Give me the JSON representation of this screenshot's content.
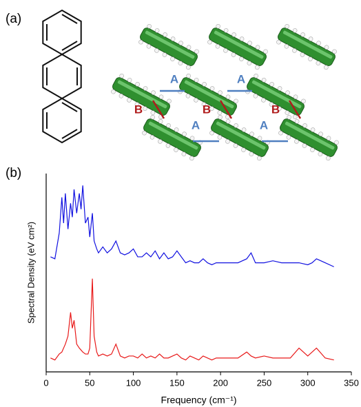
{
  "panel_labels": [
    "(a)",
    "(b)"
  ],
  "diagram": {
    "labels": [
      {
        "text": "A",
        "color": "#4f7fc0"
      },
      {
        "text": "A",
        "color": "#4f7fc0"
      },
      {
        "text": "A",
        "color": "#4f7fc0"
      },
      {
        "text": "A",
        "color": "#4f7fc0"
      },
      {
        "text": "B",
        "color": "#b01c1c"
      },
      {
        "text": "B",
        "color": "#b01c1c"
      },
      {
        "text": "B",
        "color": "#b01c1c"
      }
    ]
  },
  "chart_data": {
    "type": "line",
    "xlabel": "Frequency (cm⁻¹)",
    "ylabel": "Spectral Density (eV cm²)",
    "xlim": [
      0,
      350
    ],
    "xticks": [
      0,
      50,
      100,
      150,
      200,
      250,
      300,
      350
    ],
    "ylim": [
      0,
      100
    ],
    "x": [
      5,
      10,
      15,
      18,
      20,
      22,
      25,
      28,
      30,
      32,
      35,
      38,
      40,
      42,
      45,
      48,
      50,
      53,
      55,
      58,
      60,
      65,
      70,
      75,
      80,
      85,
      90,
      95,
      100,
      105,
      110,
      115,
      120,
      125,
      130,
      135,
      140,
      145,
      150,
      155,
      160,
      165,
      170,
      175,
      180,
      185,
      190,
      195,
      200,
      210,
      220,
      230,
      235,
      240,
      250,
      260,
      270,
      280,
      290,
      300,
      305,
      310,
      320,
      330
    ],
    "series": [
      {
        "color": "#1010e0",
        "values": [
          58,
          57,
          70,
          88,
          75,
          90,
          72,
          85,
          78,
          92,
          80,
          90,
          82,
          94,
          75,
          78,
          68,
          80,
          66,
          62,
          60,
          63,
          60,
          62,
          66,
          60,
          59,
          60,
          62,
          58,
          58,
          60,
          58,
          61,
          57,
          60,
          57,
          58,
          61,
          58,
          55,
          56,
          55,
          55,
          57,
          55,
          54,
          55,
          55,
          55,
          55,
          57,
          60,
          55,
          55,
          56,
          55,
          55,
          55,
          54,
          55,
          57,
          55,
          53
        ]
      },
      {
        "color": "#e81818",
        "values": [
          7,
          6,
          9,
          10,
          12,
          14,
          18,
          30,
          22,
          26,
          14,
          12,
          11,
          10,
          9,
          9,
          12,
          47,
          18,
          10,
          8,
          9,
          8,
          9,
          14,
          8,
          7,
          8,
          8,
          7,
          9,
          7,
          8,
          7,
          9,
          7,
          7,
          8,
          9,
          7,
          6,
          8,
          7,
          6,
          8,
          7,
          6,
          7,
          7,
          7,
          7,
          10,
          8,
          7,
          8,
          7,
          7,
          7,
          12,
          8,
          10,
          12,
          7,
          6
        ]
      }
    ]
  }
}
